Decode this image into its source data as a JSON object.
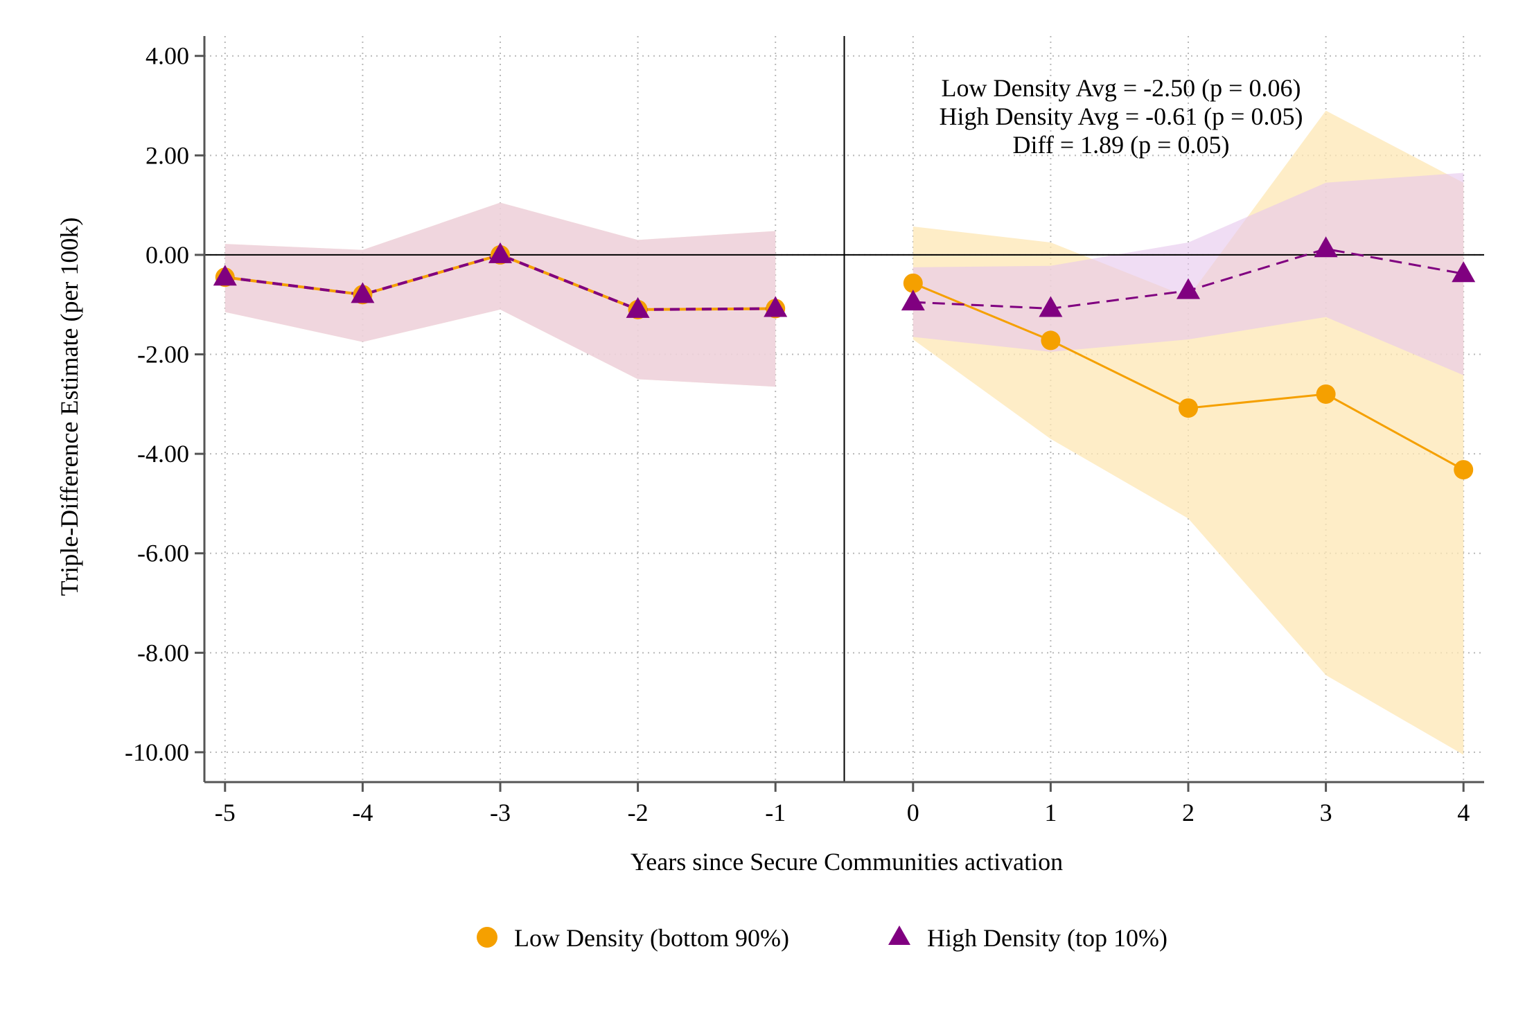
{
  "chart_data": {
    "type": "line",
    "xlabel": "Years since Secure Communities activation",
    "ylabel": "Triple-Difference Estimate (per 100k)",
    "x": [
      -5,
      -4,
      -3,
      -2,
      -1,
      0,
      1,
      2,
      3,
      4
    ],
    "x_ticks": [
      "-5",
      "-4",
      "-3",
      "-2",
      "-1",
      "0",
      "1",
      "2",
      "3",
      "4"
    ],
    "y_ticks": [
      "4.00",
      "2.00",
      "0.00",
      "-2.00",
      "-4.00",
      "-6.00",
      "-8.00",
      "-10.00"
    ],
    "y_tick_values": [
      4,
      2,
      0,
      -2,
      -4,
      -6,
      -8,
      -10
    ],
    "ylim": [
      -10.6,
      4.4
    ],
    "xlim": [
      -5.15,
      4.15
    ],
    "grid": true,
    "event_line_x": -0.5,
    "series": [
      {
        "name": "Low Density (bottom 90%)",
        "color": "#F5A000",
        "marker": "circle",
        "line": "solid",
        "band_color": "#FDE7B4",
        "values": [
          -0.45,
          -0.8,
          0.0,
          -1.1,
          -1.08,
          -0.57,
          -1.72,
          -3.08,
          -2.8,
          -4.32
        ],
        "ci_low": [
          -1.15,
          -1.75,
          -1.1,
          -2.5,
          -2.65,
          -1.7,
          -3.7,
          -5.3,
          -8.45,
          -10.05
        ],
        "ci_high": [
          0.22,
          0.1,
          1.05,
          0.3,
          0.48,
          0.57,
          0.25,
          -0.85,
          2.9,
          1.45
        ]
      },
      {
        "name": "High Density (top 10%)",
        "color": "#800080",
        "marker": "triangle",
        "line": "dashed",
        "band_color": "#E6C6EC",
        "values": [
          -0.45,
          -0.8,
          0.0,
          -1.1,
          -1.08,
          -0.95,
          -1.08,
          -0.72,
          0.12,
          -0.38
        ],
        "ci_low": [
          -1.15,
          -1.75,
          -1.1,
          -2.5,
          -2.65,
          -1.65,
          -1.95,
          -1.7,
          -1.25,
          -2.42
        ],
        "ci_high": [
          0.22,
          0.1,
          1.05,
          0.3,
          0.48,
          -0.25,
          -0.22,
          0.25,
          1.45,
          1.65
        ]
      }
    ],
    "annotation": [
      "Low Density Avg = -2.50 (p = 0.06)",
      "High Density Avg = -0.61 (p = 0.05)",
      "Diff = 1.89 (p = 0.05)"
    ],
    "legend_position": "bottom"
  }
}
